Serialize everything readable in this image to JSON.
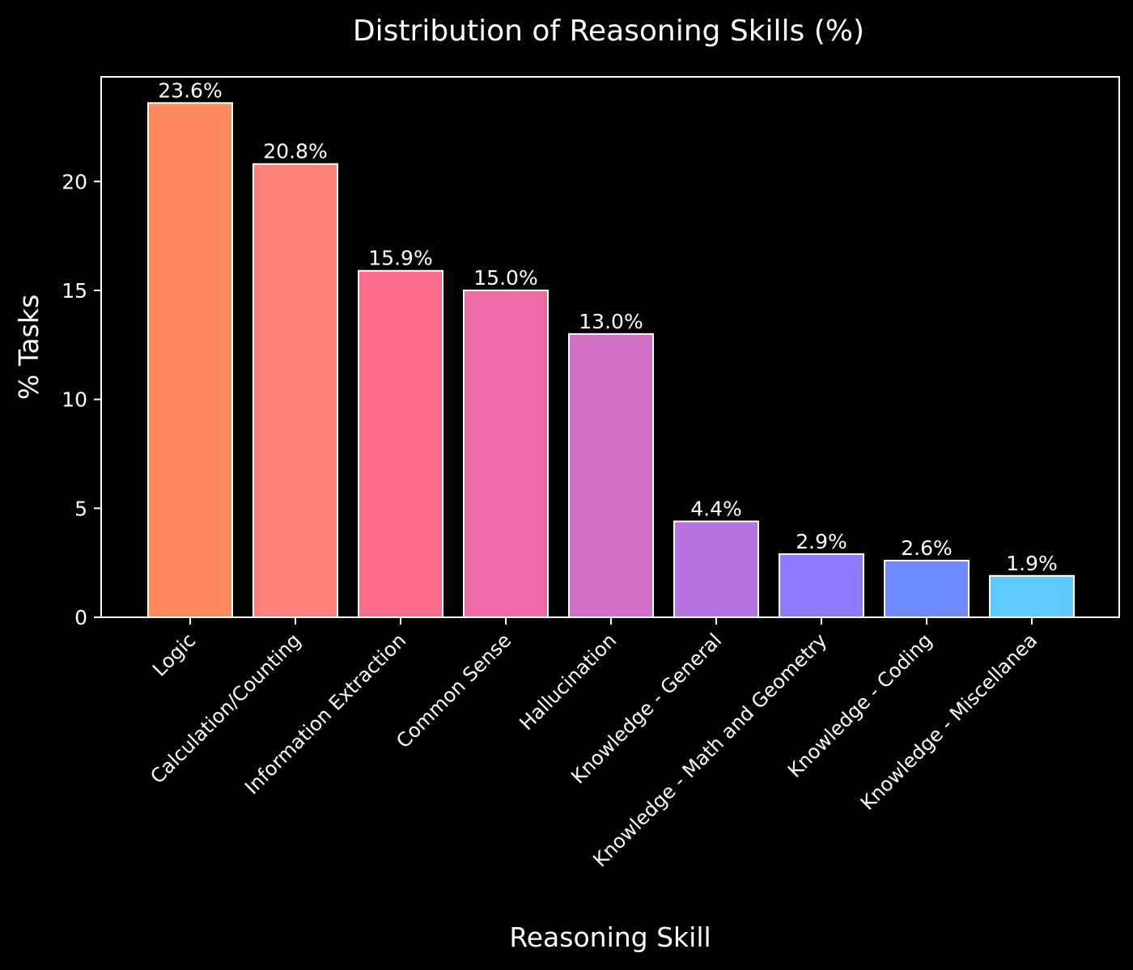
{
  "chart_data": {
    "type": "bar",
    "title": "Distribution of Reasoning Skills (%)",
    "xlabel": "Reasoning Skill",
    "ylabel": "% Tasks",
    "ylim": [
      0,
      24.8
    ],
    "yticks": [
      0,
      5,
      10,
      15,
      20
    ],
    "grid": false,
    "categories": [
      "Logic",
      "Calculation/Counting",
      "Information Extraction",
      "Common Sense",
      "Hallucination",
      "Knowledge - General",
      "Knowledge - Math and Geometry",
      "Knowledge - Coding",
      "Knowledge - Miscellanea"
    ],
    "values": [
      23.6,
      20.8,
      15.9,
      15.0,
      13.0,
      4.4,
      2.9,
      2.6,
      1.9
    ],
    "data_labels": [
      "23.6%",
      "20.8%",
      "15.9%",
      "15.0%",
      "13.0%",
      "4.4%",
      "2.9%",
      "2.6%",
      "1.9%"
    ],
    "colors": [
      "#FF8A5B",
      "#FF7F7A",
      "#FF6B8B",
      "#EE6AA7",
      "#D36FC6",
      "#B574E0",
      "#8E79FF",
      "#6F8BFF",
      "#5EC8FF"
    ],
    "background": "#000000",
    "foreground": "#ffffff"
  }
}
